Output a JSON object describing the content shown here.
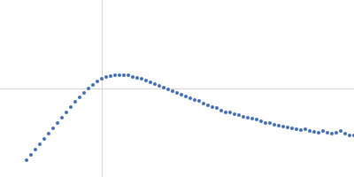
{
  "chart_data": {
    "type": "scatter",
    "color": "#3f6db5",
    "marker": "circle",
    "grid": true,
    "tick_labels": false,
    "xlim": [
      0,
      400
    ],
    "ylim": [
      0,
      200
    ],
    "xticks": [
      115
    ],
    "yticks": [
      100
    ],
    "x": [
      30,
      35,
      40,
      45,
      50,
      55,
      60,
      65,
      70,
      75,
      80,
      85,
      90,
      95,
      100,
      105,
      110,
      115,
      120,
      125,
      130,
      135,
      140,
      145,
      150,
      155,
      160,
      165,
      170,
      175,
      180,
      185,
      190,
      195,
      200,
      205,
      210,
      215,
      220,
      225,
      230,
      235,
      240,
      245,
      250,
      255,
      260,
      265,
      270,
      275,
      280,
      285,
      290,
      295,
      300,
      305,
      310,
      315,
      320,
      325,
      330,
      335,
      340,
      345,
      350,
      355,
      360,
      365,
      370,
      375,
      380,
      385,
      390,
      395,
      400
    ],
    "values": [
      19,
      25,
      31,
      37,
      43,
      49,
      55,
      61,
      67,
      73,
      79,
      85,
      90,
      95,
      100,
      104,
      108,
      111,
      113,
      114,
      115,
      115,
      115,
      115,
      113,
      112,
      111,
      109,
      107,
      105,
      103,
      101,
      99,
      97,
      95,
      93,
      91,
      89,
      87,
      86,
      83,
      81,
      79,
      78,
      75,
      73,
      73,
      71,
      70,
      68,
      67,
      66,
      65,
      63,
      61,
      61,
      59,
      58,
      57,
      56,
      55,
      54,
      53,
      54,
      52,
      51,
      50,
      52,
      50,
      49,
      50,
      52,
      49,
      47,
      47
    ]
  }
}
